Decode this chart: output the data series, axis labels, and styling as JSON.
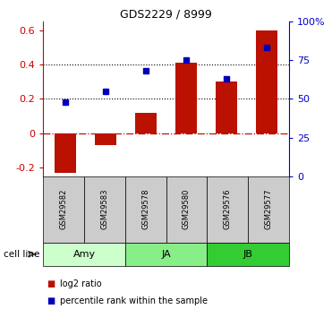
{
  "title": "GDS2229 / 8999",
  "samples": [
    "GSM29582",
    "GSM29583",
    "GSM29578",
    "GSM29580",
    "GSM29576",
    "GSM29577"
  ],
  "log2_ratio": [
    -0.23,
    -0.07,
    0.12,
    0.41,
    0.3,
    0.6
  ],
  "percentile_rank": [
    0.48,
    0.55,
    0.68,
    0.75,
    0.63,
    0.83
  ],
  "cell_lines": [
    {
      "label": "Amy",
      "color": "#ccffcc",
      "indices": [
        0,
        1
      ]
    },
    {
      "label": "JA",
      "color": "#88ee88",
      "indices": [
        2,
        3
      ]
    },
    {
      "label": "JB",
      "color": "#33cc33",
      "indices": [
        4,
        5
      ]
    }
  ],
  "bar_color": "#bb1100",
  "point_color": "#0000bb",
  "ylim_left": [
    -0.25,
    0.65
  ],
  "ylim_right": [
    0,
    100
  ],
  "yticks_left": [
    -0.2,
    0.0,
    0.2,
    0.4,
    0.6
  ],
  "ytick_labels_left": [
    "-0.2",
    "0",
    "0.2",
    "0.4",
    "0.6"
  ],
  "yticks_right": [
    0,
    25,
    50,
    75,
    100
  ],
  "ytick_labels_right": [
    "0",
    "25",
    "50",
    "75",
    "100%"
  ],
  "hline_y": 0,
  "dotted_lines": [
    0.2,
    0.4
  ],
  "bar_width": 0.55,
  "legend_log2": "log2 ratio",
  "legend_pct": "percentile rank within the sample",
  "cell_line_label": "cell line",
  "bg_color": "#ffffff",
  "gsm_box_color": "#cccccc",
  "spine_color_left": "#cc0000",
  "spine_color_right": "#0000cc"
}
